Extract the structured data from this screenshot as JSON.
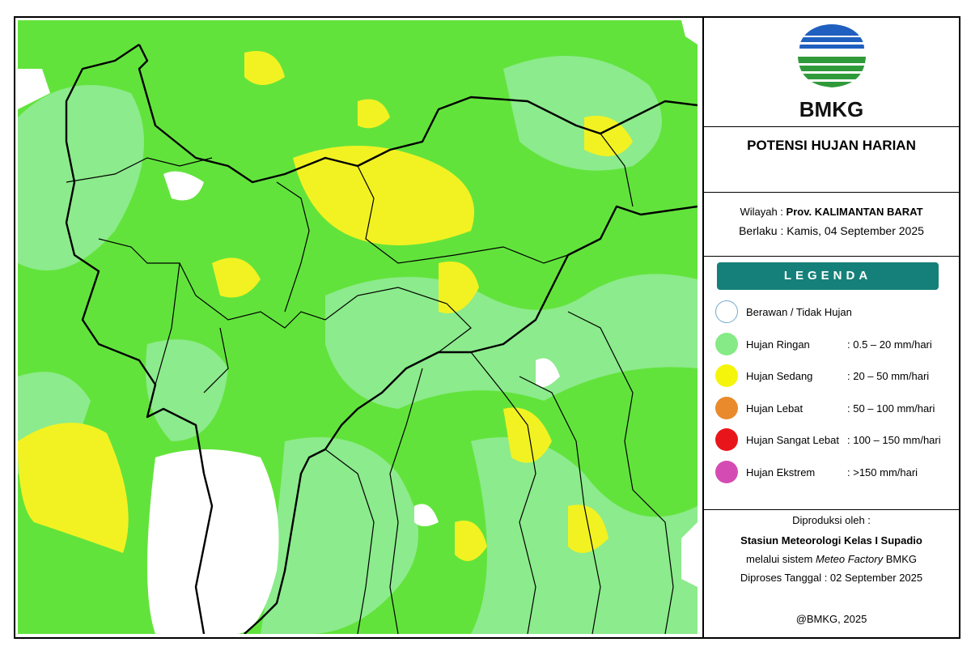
{
  "logo": {
    "text": "BMKG"
  },
  "title": "POTENSI HUJAN HARIAN",
  "info": {
    "region_label": "Wilayah :",
    "region": "Prov. KALIMANTAN BARAT",
    "valid_label": "Berlaku :",
    "valid": "Kamis, 04 September 2025"
  },
  "legend": {
    "title": "LEGENDA",
    "items": [
      {
        "label": "Berawan / Tidak Hujan",
        "color": "#ffffff"
      },
      {
        "label": "Hujan Ringan",
        "range": ": 0.5 – 20 mm/hari",
        "color": "#86ea86"
      },
      {
        "label": "Hujan Sedang",
        "range": ": 20 – 50 mm/hari",
        "color": "#f5f50c"
      },
      {
        "label": "Hujan Lebat",
        "range": ": 50 – 100 mm/hari",
        "color": "#e98a2c"
      },
      {
        "label": "Hujan Sangat Lebat",
        "range": ": 100 – 150 mm/hari",
        "color": "#e8161b"
      },
      {
        "label": "Hujan Ekstrem",
        "range": ": >150 mm/hari",
        "color": "#d44cb3"
      }
    ]
  },
  "producer": {
    "intro": "Diproduksi oleh :",
    "station": "Stasiun Meteorologi Kelas I Supadio",
    "system_prefix": "melalui sistem",
    "system_name": "Meteo Factory",
    "system_suffix": "BMKG",
    "processed": "Diproses Tanggal : 02 September 2025"
  },
  "copyright": "@BMKG, 2025"
}
